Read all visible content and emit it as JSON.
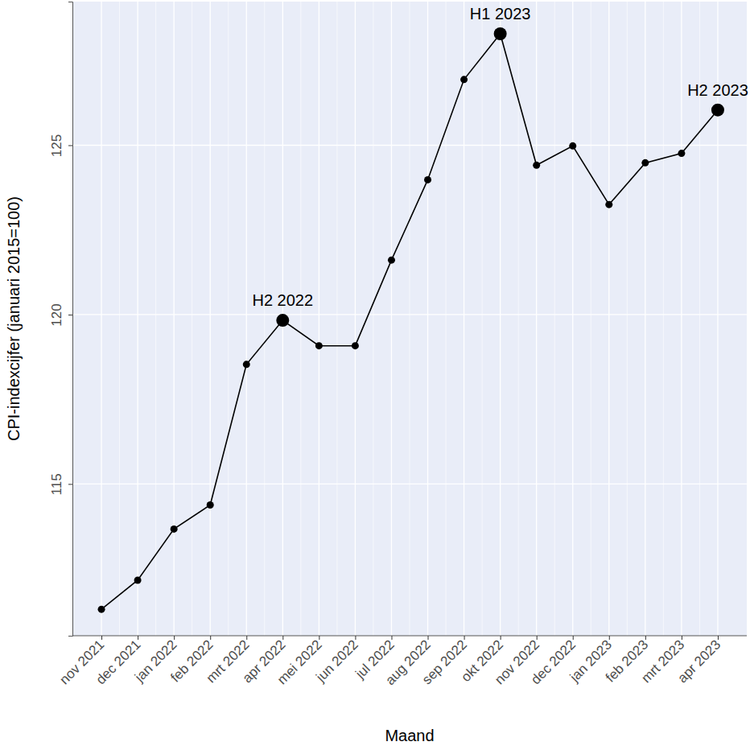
{
  "chart_data": {
    "type": "line",
    "x_label": "Maand",
    "y_label": "CPI-indexcijfer (januari 2015=100)",
    "categories": [
      "nov 2021",
      "dec 2021",
      "jan 2022",
      "feb 2022",
      "mrt 2022",
      "apr 2022",
      "mei 2022",
      "jun 2022",
      "jul 2022",
      "aug 2022",
      "sep 2022",
      "okt 2022",
      "nov 2022",
      "dec 2022",
      "jan 2023",
      "feb 2023",
      "mrt 2023",
      "apr 2023"
    ],
    "values": [
      111.3,
      112.16,
      113.67,
      114.38,
      118.53,
      119.83,
      119.08,
      119.08,
      121.61,
      123.98,
      126.94,
      128.29,
      124.41,
      124.98,
      123.25,
      124.48,
      124.76,
      126.04
    ],
    "color": "#000000",
    "marker": "circle",
    "ylim": [
      110.52,
      129.24
    ],
    "yticks": [
      115,
      120,
      125
    ],
    "grid": true,
    "annotations": [
      {
        "text": "H2 2022",
        "x": "apr 2022"
      },
      {
        "text": "H1 2023",
        "x": "okt 2022"
      },
      {
        "text": "H2 2023",
        "x": "apr 2023"
      }
    ]
  }
}
